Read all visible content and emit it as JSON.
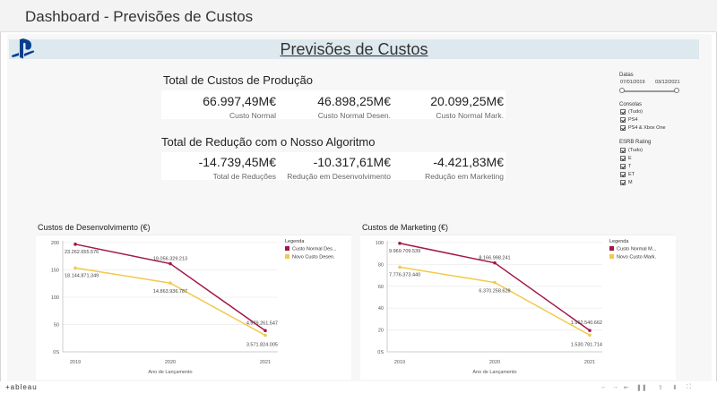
{
  "window": {
    "title": "Dashboard - Previsões de Custos"
  },
  "dashboard": {
    "title": "Previsões de Custos",
    "kpi_sections": [
      {
        "title": "Total de Custos de Produção",
        "items": [
          {
            "value": "66.997,49M€",
            "label": "Custo Normal"
          },
          {
            "value": "46.898,25M€",
            "label": "Custo Normal Desen."
          },
          {
            "value": "20.099,25M€",
            "label": "Custo Normal Mark."
          }
        ]
      },
      {
        "title": "Total de Redução com o Nosso Algoritmo",
        "items": [
          {
            "value": "-14.739,45M€",
            "label": "Total de Reduções"
          },
          {
            "value": "-10.317,61M€",
            "label": "Redução em Desenvolvimento"
          },
          {
            "value": "-4.421,83M€",
            "label": "Redução em Marketing"
          }
        ]
      }
    ]
  },
  "filters": {
    "dates": {
      "title": "Datas",
      "start": "07/01/2019",
      "end": "03/12/2021"
    },
    "consoles": {
      "title": "Consolas",
      "options": [
        "(Tudo)",
        "PS4",
        "PS4 & Xbox One"
      ]
    },
    "esrb": {
      "title": "ESRB Rating",
      "options": [
        "(Tudo)",
        "E",
        "T",
        "ET",
        "M"
      ]
    }
  },
  "colors": {
    "normal": "#a3174a",
    "novo": "#f2c94c",
    "banner": "#dde9ef"
  },
  "chart_data": [
    {
      "type": "line",
      "title": "Custos de Desenvolvimento (€)",
      "xlabel": "Ano de Lançamento",
      "ylabel": "",
      "x": [
        "2019",
        "2020",
        "2021"
      ],
      "y_ticks": [
        "200",
        "150",
        "100",
        "50",
        "0S"
      ],
      "ylim": [
        0,
        240
      ],
      "legend_title": "Legenda",
      "legend_position": "top-right",
      "series": [
        {
          "name": "Custo Normal Des...",
          "values": [
            232.6,
            190.6,
            45.8
          ],
          "labels": [
            "23.262.655.576",
            "19.056.329.213",
            "4.579.261.547"
          ],
          "color": "#a3174a"
        },
        {
          "name": "Novo Custo Desen.",
          "values": [
            181.4,
            148.6,
            35.7
          ],
          "labels": [
            "18.144.871.349",
            "14.863.936.787",
            "3.571.824.005"
          ],
          "color": "#f2c94c"
        }
      ]
    },
    {
      "type": "line",
      "title": "Custos de Marketing (€)",
      "xlabel": "Ano de Lançamento",
      "ylabel": "",
      "x": [
        "2019",
        "2020",
        "2021"
      ],
      "y_ticks": [
        "100",
        "80",
        "60",
        "40",
        "20",
        "0S"
      ],
      "ylim": [
        0,
        102
      ],
      "legend_title": "Legenda",
      "legend_position": "top-right",
      "series": [
        {
          "name": "Custo Normal M...",
          "values": [
            99.7,
            81.7,
            19.6
          ],
          "labels": [
            "9.969.709.539",
            "8.166.998.241",
            "1.962.540.662"
          ],
          "color": "#a3174a"
        },
        {
          "name": "Novo Custo Mark.",
          "values": [
            77.8,
            63.7,
            15.3
          ],
          "labels": [
            "7.776.373.440",
            "6.370.258.628",
            "1.530.781.714"
          ],
          "color": "#f2c94c"
        }
      ]
    }
  ],
  "footer": {
    "brand": "+ableau"
  }
}
